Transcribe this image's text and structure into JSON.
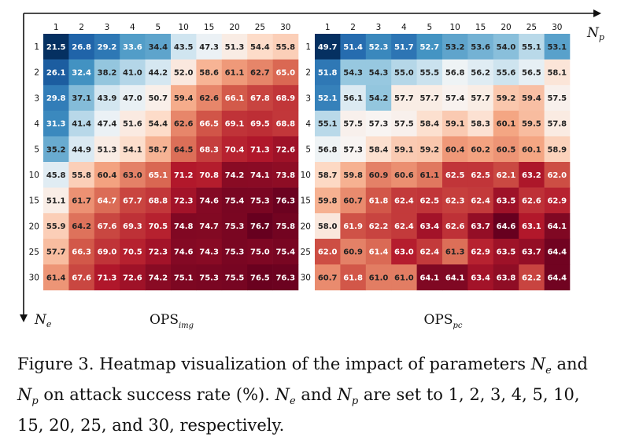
{
  "chart_data": [
    {
      "type": "heatmap",
      "title": "OPS",
      "title_subscript": "img",
      "xlabel": "N",
      "xlabel_subscript": "p",
      "ylabel": "N",
      "ylabel_subscript": "e",
      "x_ticks": [
        "1",
        "2",
        "3",
        "4",
        "5",
        "10",
        "15",
        "20",
        "25",
        "30"
      ],
      "y_ticks": [
        "1",
        "2",
        "3",
        "4",
        "5",
        "10",
        "15",
        "20",
        "25",
        "30"
      ],
      "colormap": "RdBu_r",
      "value_range": [
        21.5,
        76.7
      ],
      "values": [
        [
          21.5,
          26.8,
          29.2,
          33.6,
          34.4,
          43.5,
          47.3,
          51.3,
          54.4,
          55.8
        ],
        [
          26.1,
          32.4,
          38.2,
          41.0,
          44.2,
          52.0,
          58.6,
          61.1,
          62.7,
          65.0
        ],
        [
          29.8,
          37.1,
          43.9,
          47.0,
          50.7,
          59.4,
          62.6,
          66.1,
          67.8,
          68.9
        ],
        [
          31.3,
          41.4,
          47.4,
          51.6,
          54.4,
          62.6,
          66.5,
          69.1,
          69.5,
          68.8
        ],
        [
          35.2,
          44.9,
          51.3,
          54.1,
          58.7,
          64.5,
          68.3,
          70.4,
          71.3,
          72.6
        ],
        [
          45.8,
          55.8,
          60.4,
          63.0,
          65.1,
          71.2,
          70.8,
          74.2,
          74.1,
          73.8
        ],
        [
          51.1,
          61.7,
          64.7,
          67.7,
          68.8,
          72.3,
          74.6,
          75.4,
          75.3,
          76.3
        ],
        [
          55.9,
          64.2,
          67.6,
          69.3,
          70.5,
          74.8,
          74.7,
          75.3,
          76.7,
          75.8
        ],
        [
          57.7,
          66.3,
          69.0,
          70.5,
          72.3,
          74.6,
          74.3,
          75.3,
          75.0,
          75.4
        ],
        [
          61.4,
          67.6,
          71.3,
          72.6,
          74.2,
          75.1,
          75.3,
          75.5,
          76.5,
          76.3
        ]
      ]
    },
    {
      "type": "heatmap",
      "title": "OPS",
      "title_subscript": "pc",
      "xlabel": "N",
      "xlabel_subscript": "p",
      "ylabel": "N",
      "ylabel_subscript": "e",
      "x_ticks": [
        "1",
        "2",
        "3",
        "4",
        "5",
        "10",
        "15",
        "20",
        "25",
        "30"
      ],
      "y_ticks": [
        "1",
        "2",
        "3",
        "4",
        "5",
        "10",
        "15",
        "20",
        "25",
        "30"
      ],
      "colormap": "RdBu_r",
      "value_range": [
        49.7,
        64.6
      ],
      "values": [
        [
          49.7,
          51.4,
          52.3,
          51.7,
          52.7,
          53.2,
          53.6,
          54.0,
          55.1,
          53.1
        ],
        [
          51.8,
          54.3,
          54.3,
          55.0,
          55.5,
          56.8,
          56.2,
          55.6,
          56.5,
          58.1
        ],
        [
          52.1,
          56.1,
          54.2,
          57.7,
          57.7,
          57.4,
          57.7,
          59.2,
          59.4,
          57.5
        ],
        [
          55.1,
          57.5,
          57.3,
          57.5,
          58.4,
          59.1,
          58.3,
          60.1,
          59.5,
          57.8
        ],
        [
          56.8,
          57.3,
          58.4,
          59.1,
          59.2,
          60.4,
          60.2,
          60.5,
          60.1,
          58.9
        ],
        [
          58.7,
          59.8,
          60.9,
          60.6,
          61.1,
          62.5,
          62.5,
          62.1,
          63.2,
          62.0
        ],
        [
          59.8,
          60.7,
          61.8,
          62.4,
          62.5,
          62.3,
          62.4,
          63.5,
          62.6,
          62.9
        ],
        [
          58.0,
          61.9,
          62.2,
          62.4,
          63.4,
          62.6,
          63.7,
          64.6,
          63.1,
          64.1
        ],
        [
          62.0,
          60.9,
          61.4,
          63.0,
          62.4,
          61.3,
          62.9,
          63.5,
          63.7,
          64.4
        ],
        [
          60.7,
          61.8,
          61.0,
          61.0,
          64.1,
          64.1,
          63.4,
          63.8,
          62.2,
          64.4
        ]
      ]
    }
  ],
  "axes": {
    "x_label": "N",
    "x_label_sub": "p",
    "y_label": "N",
    "y_label_sub": "e"
  },
  "caption": {
    "prefix": "Figure 3.  Heatmap visualization of the impact of parameters ",
    "ne_main": "N",
    "ne_sub": "e",
    "middle": " and ",
    "np_main": "N",
    "np_sub": "p",
    "after_params": " on attack success rate (%). ",
    "ne2_main": "N",
    "ne2_sub": "e",
    "and2": " and ",
    "np2_main": "N",
    "np2_sub": "p",
    "suffix": " are set to 1, 2, 3, 4, 5, 10, 15, 20, 25, and 30, respectively."
  }
}
